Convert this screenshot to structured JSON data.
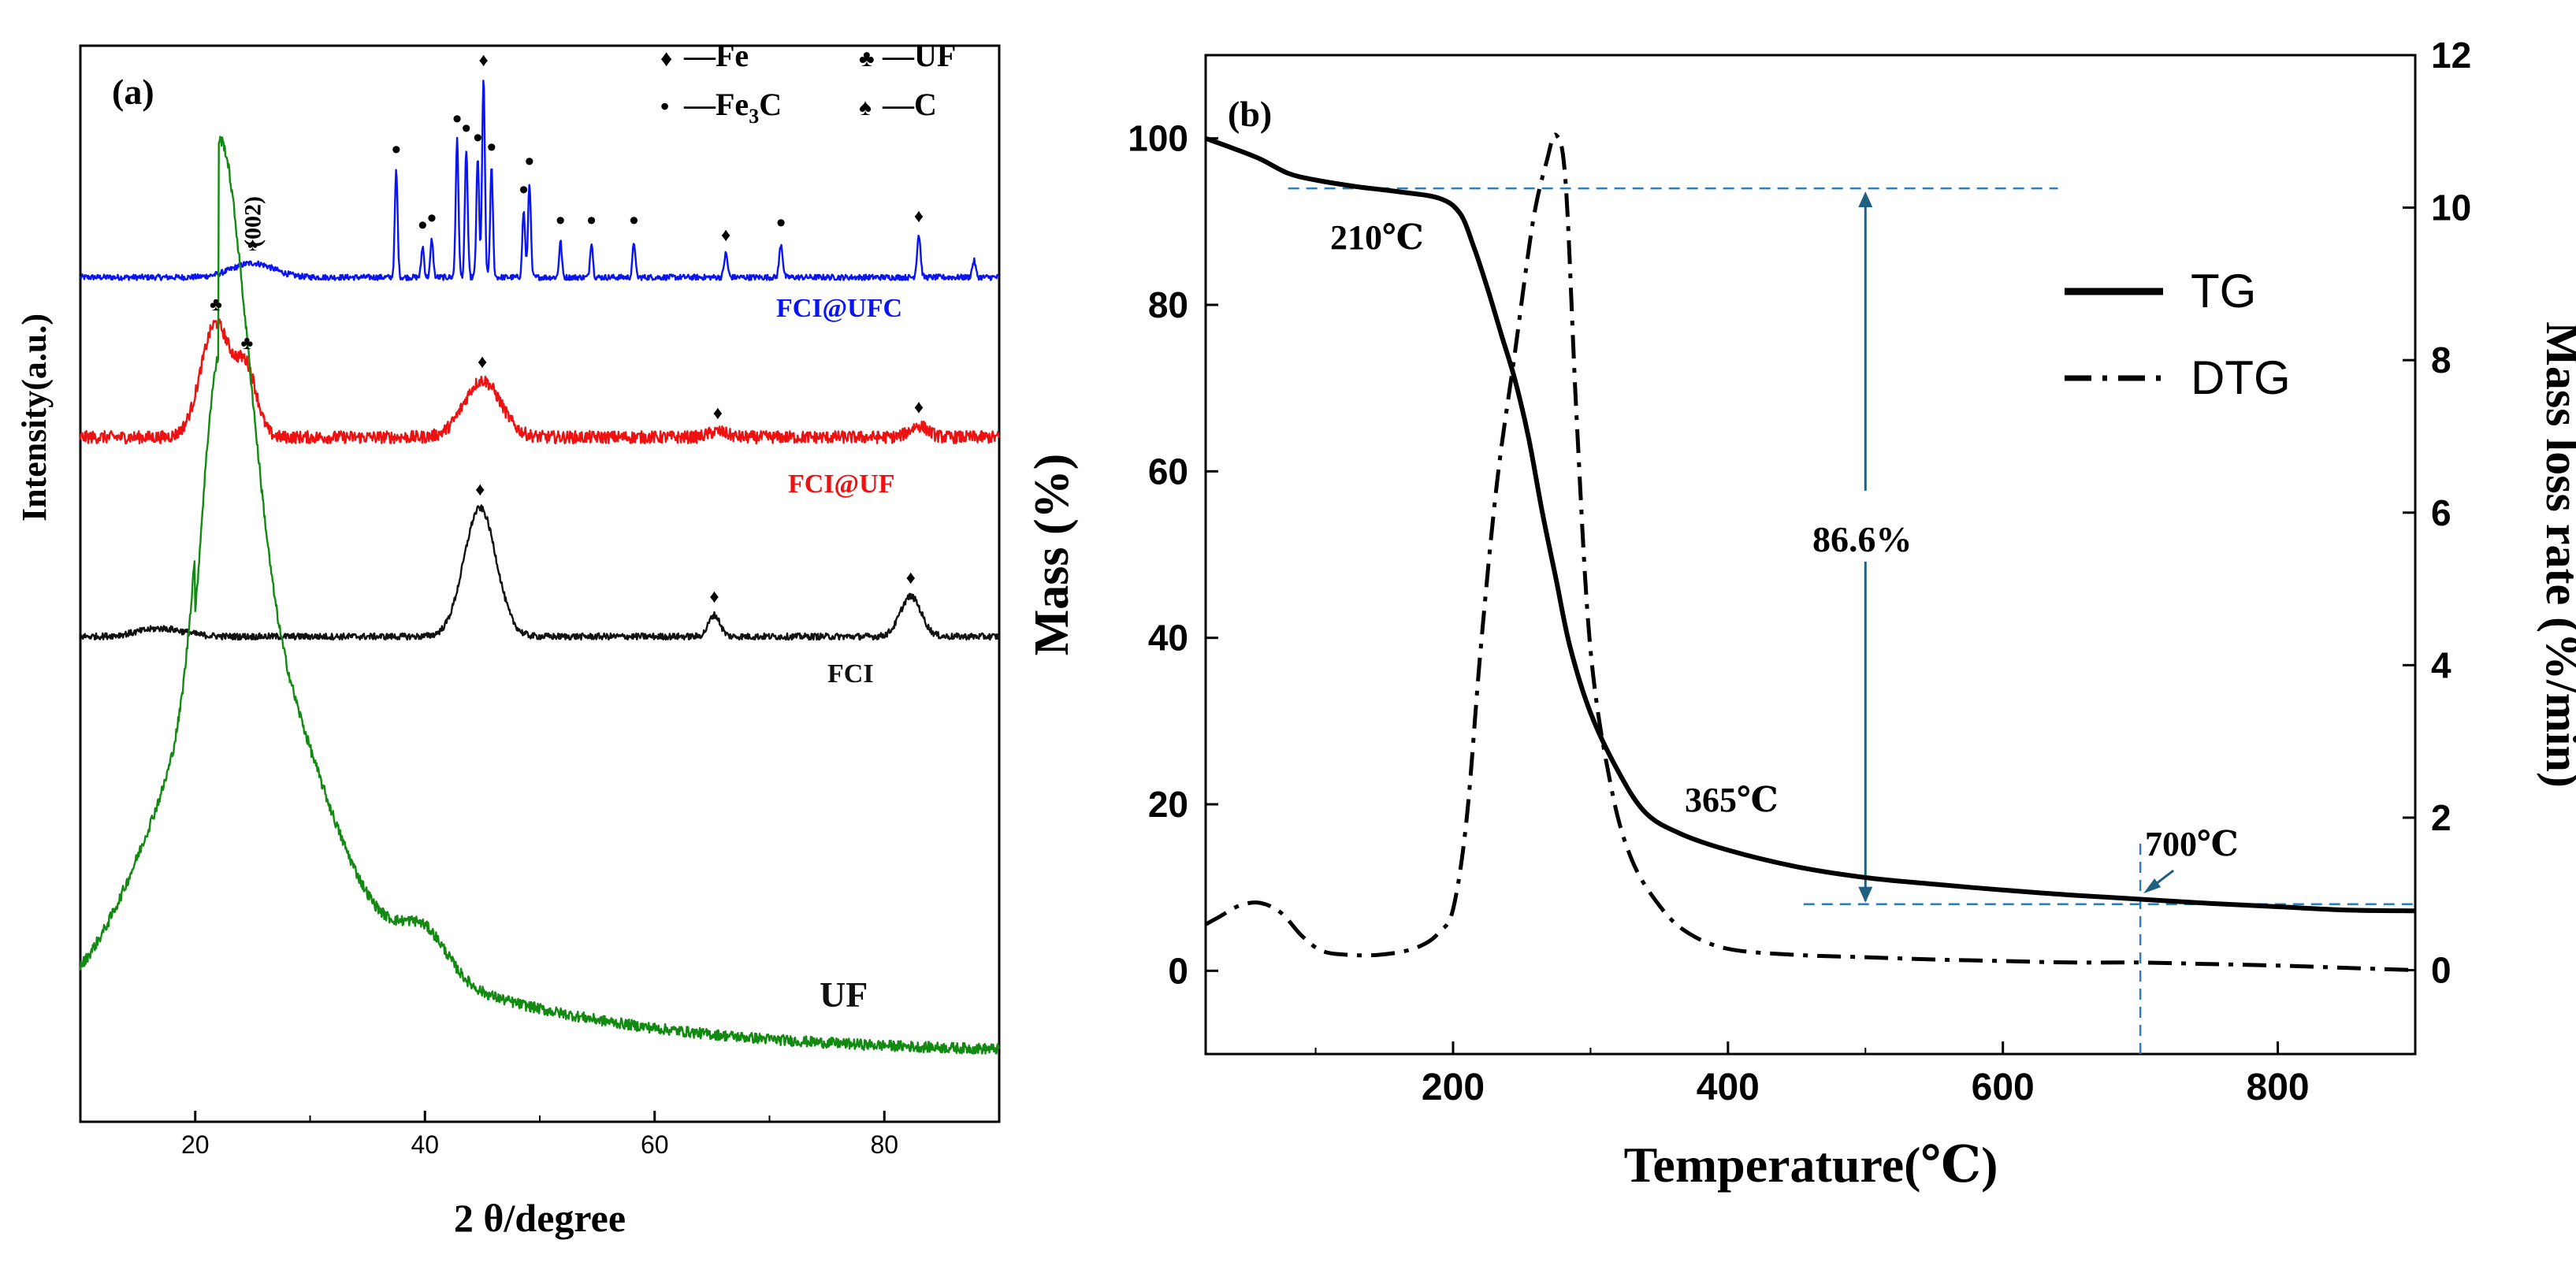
{
  "chart_data": [
    {
      "panel": "(a)",
      "type": "line",
      "title": "",
      "xlabel": "2 θ/degree",
      "ylabel": "Intensity(a.u.)",
      "xlim": [
        10,
        90
      ],
      "xticks": [
        "20",
        "40",
        "60",
        "80"
      ],
      "yticks": "none",
      "legend": {
        "placement": "top-right",
        "entries": [
          {
            "symbol": "♦",
            "label": "—Fe"
          },
          {
            "symbol": "♣",
            "label": "—UF"
          },
          {
            "symbol": "•",
            "label": "—Fe",
            "sub": "3",
            "tail": "C"
          },
          {
            "symbol": "♠",
            "label": "—C"
          }
        ]
      },
      "series": [
        {
          "name": "FCI@UFC",
          "color": "#0a14f0",
          "baseline": 0.0,
          "noise": 0.012,
          "peaks": [
            [
              25,
              0.06,
              1.8
            ],
            [
              37.5,
              0.45,
              0.12
            ],
            [
              39.8,
              0.13,
              0.12
            ],
            [
              40.6,
              0.16,
              0.12
            ],
            [
              42.8,
              0.58,
              0.12
            ],
            [
              43.6,
              0.54,
              0.12
            ],
            [
              44.6,
              0.5,
              0.12
            ],
            [
              45.1,
              0.84,
              0.12
            ],
            [
              45.8,
              0.46,
              0.12
            ],
            [
              48.6,
              0.28,
              0.12
            ],
            [
              49.1,
              0.4,
              0.12
            ],
            [
              51.8,
              0.15,
              0.12
            ],
            [
              54.5,
              0.15,
              0.12
            ],
            [
              58.2,
              0.15,
              0.12
            ],
            [
              66.2,
              0.1,
              0.15
            ],
            [
              71,
              0.14,
              0.15
            ],
            [
              83,
              0.18,
              0.15
            ],
            [
              87.8,
              0.07,
              0.15
            ]
          ]
        },
        {
          "name": "FCI@UF",
          "color": "#ee1111",
          "baseline": 0.0,
          "noise": 0.022,
          "peaks": [
            [
              21.8,
              0.4,
              1.3
            ],
            [
              24.5,
              0.22,
              0.9
            ],
            [
              45,
              0.2,
              1.6
            ],
            [
              65.5,
              0.02,
              0.8
            ],
            [
              83,
              0.04,
              0.8
            ]
          ]
        },
        {
          "name": "FCI",
          "color": "#111111",
          "baseline": 0.0,
          "noise": 0.012,
          "peaks": [
            [
              17,
              0.03,
              2.0
            ],
            [
              44.8,
              0.48,
              1.4
            ],
            [
              65.2,
              0.08,
              0.5
            ],
            [
              82.3,
              0.15,
              0.9
            ]
          ]
        },
        {
          "name": "UF",
          "color": "#128a12",
          "baseline": 0.0,
          "noise": 0.008,
          "peaks": [
            [
              21.8,
              0.5,
              1.5
            ],
            [
              24.2,
              0.26,
              1.6
            ],
            [
              23,
              0.45,
              6.5
            ],
            [
              40,
              0.06,
              2
            ]
          ],
          "decay": [
            0.32,
            18
          ]
        }
      ],
      "series_labels": [
        {
          "text": "FCI@UFC",
          "color": "#0a14f0"
        },
        {
          "text": "FCI@UF",
          "color": "#ee1111"
        },
        {
          "text": "FCI",
          "color": "#111111"
        },
        {
          "text": "UF",
          "color": "#111111"
        }
      ],
      "markers": [
        {
          "series": "FCI@UFC",
          "symbol": "♠",
          "x": 25,
          "label": "(002)"
        },
        {
          "series": "FCI@UFC",
          "symbol": "•",
          "x": 37.5
        },
        {
          "series": "FCI@UFC",
          "symbol": "•",
          "x": 39.8
        },
        {
          "series": "FCI@UFC",
          "symbol": "•",
          "x": 40.6
        },
        {
          "series": "FCI@UFC",
          "symbol": "•",
          "x": 42.8
        },
        {
          "series": "FCI@UFC",
          "symbol": "•",
          "x": 43.6
        },
        {
          "series": "FCI@UFC",
          "symbol": "•",
          "x": 44.6
        },
        {
          "series": "FCI@UFC",
          "symbol": "♦",
          "x": 45.1
        },
        {
          "series": "FCI@UFC",
          "symbol": "•",
          "x": 45.8
        },
        {
          "series": "FCI@UFC",
          "symbol": "•",
          "x": 48.6
        },
        {
          "series": "FCI@UFC",
          "symbol": "•",
          "x": 49.1
        },
        {
          "series": "FCI@UFC",
          "symbol": "•",
          "x": 51.8
        },
        {
          "series": "FCI@UFC",
          "symbol": "•",
          "x": 54.5
        },
        {
          "series": "FCI@UFC",
          "symbol": "•",
          "x": 58.2
        },
        {
          "series": "FCI@UFC",
          "symbol": "♦",
          "x": 66.2
        },
        {
          "series": "FCI@UFC",
          "symbol": "•",
          "x": 71
        },
        {
          "series": "FCI@UFC",
          "symbol": "♦",
          "x": 83
        },
        {
          "series": "FCI@UF",
          "symbol": "♣",
          "x": 21.8
        },
        {
          "series": "FCI@UF",
          "symbol": "♣",
          "x": 24.5
        },
        {
          "series": "FCI@UF",
          "symbol": "♦",
          "x": 45
        },
        {
          "series": "FCI@UF",
          "symbol": "♦",
          "x": 65.5
        },
        {
          "series": "FCI@UF",
          "symbol": "♦",
          "x": 83
        },
        {
          "series": "FCI",
          "symbol": "♦",
          "x": 44.8
        },
        {
          "series": "FCI",
          "symbol": "♦",
          "x": 65.2
        },
        {
          "series": "FCI",
          "symbol": "♦",
          "x": 82.3
        }
      ]
    },
    {
      "panel": "(b)",
      "type": "line",
      "title": "",
      "xlabel": "Temperature(℃)",
      "ylabel": "Mass (%)",
      "y2label": "Mass loss rate (%/min)",
      "xlim": [
        20,
        900
      ],
      "ylim": [
        -10,
        110
      ],
      "y2lim": [
        -1.1,
        12
      ],
      "xticks": [
        200,
        400,
        600,
        800
      ],
      "yticks": [
        0,
        20,
        40,
        60,
        80,
        100
      ],
      "y2ticks": [
        0,
        2,
        4,
        6,
        8,
        10,
        12
      ],
      "legend": {
        "placement": "right",
        "entries": [
          "TG",
          "DTG"
        ]
      },
      "series": [
        {
          "name": "TG",
          "axis": "left",
          "style": "solid",
          "x": [
            20,
            40,
            60,
            80,
            100,
            130,
            160,
            190,
            205,
            215,
            225,
            235,
            245,
            255,
            265,
            275,
            285,
            300,
            320,
            340,
            365,
            400,
            450,
            500,
            550,
            600,
            650,
            700,
            750,
            800,
            850,
            900
          ],
          "y": [
            100,
            98.8,
            97.5,
            95.8,
            95,
            94.2,
            93.6,
            92.8,
            91,
            87,
            82,
            76.5,
            71,
            64,
            55,
            47,
            39,
            31,
            24,
            19,
            16.5,
            14.5,
            12.5,
            11.2,
            10.4,
            9.7,
            9.1,
            8.6,
            8.1,
            7.7,
            7.3,
            7.2
          ]
        },
        {
          "name": "DTG",
          "axis": "right",
          "style": "dashdot",
          "x": [
            20,
            30,
            45,
            60,
            75,
            90,
            105,
            125,
            145,
            165,
            180,
            190,
            200,
            210,
            220,
            232,
            245,
            258,
            268,
            275,
            282,
            290,
            300,
            315,
            330,
            350,
            370,
            400,
            450,
            500,
            550,
            600,
            650,
            700,
            750,
            800,
            850,
            900
          ],
          "y": [
            0.6,
            0.7,
            0.85,
            0.88,
            0.75,
            0.45,
            0.25,
            0.2,
            0.2,
            0.25,
            0.35,
            0.5,
            0.8,
            2.0,
            4.2,
            6.4,
            8.1,
            9.8,
            10.6,
            10.95,
            10.3,
            7.2,
            4.2,
            2.4,
            1.45,
            0.85,
            0.5,
            0.28,
            0.2,
            0.17,
            0.14,
            0.12,
            0.1,
            0.1,
            0.08,
            0.06,
            0.03,
            0.0
          ]
        }
      ],
      "annotations": [
        {
          "text": "210℃",
          "x": 210,
          "y": 89
        },
        {
          "text": "365℃",
          "x": 365,
          "y": 20
        },
        {
          "text": "700℃",
          "x": 700,
          "y": 15
        },
        {
          "text": "86.6%",
          "x": 500,
          "y": 52
        },
        {
          "type": "hline",
          "y": 94,
          "x0": 80,
          "x1": 640
        },
        {
          "type": "hline",
          "y": 8,
          "x0": 455,
          "x1": 900
        },
        {
          "type": "vline",
          "x": 700,
          "y0": -10,
          "y1": 16
        },
        {
          "type": "double-arrow",
          "x": 500,
          "y0": 94,
          "y1": 8
        }
      ]
    }
  ]
}
